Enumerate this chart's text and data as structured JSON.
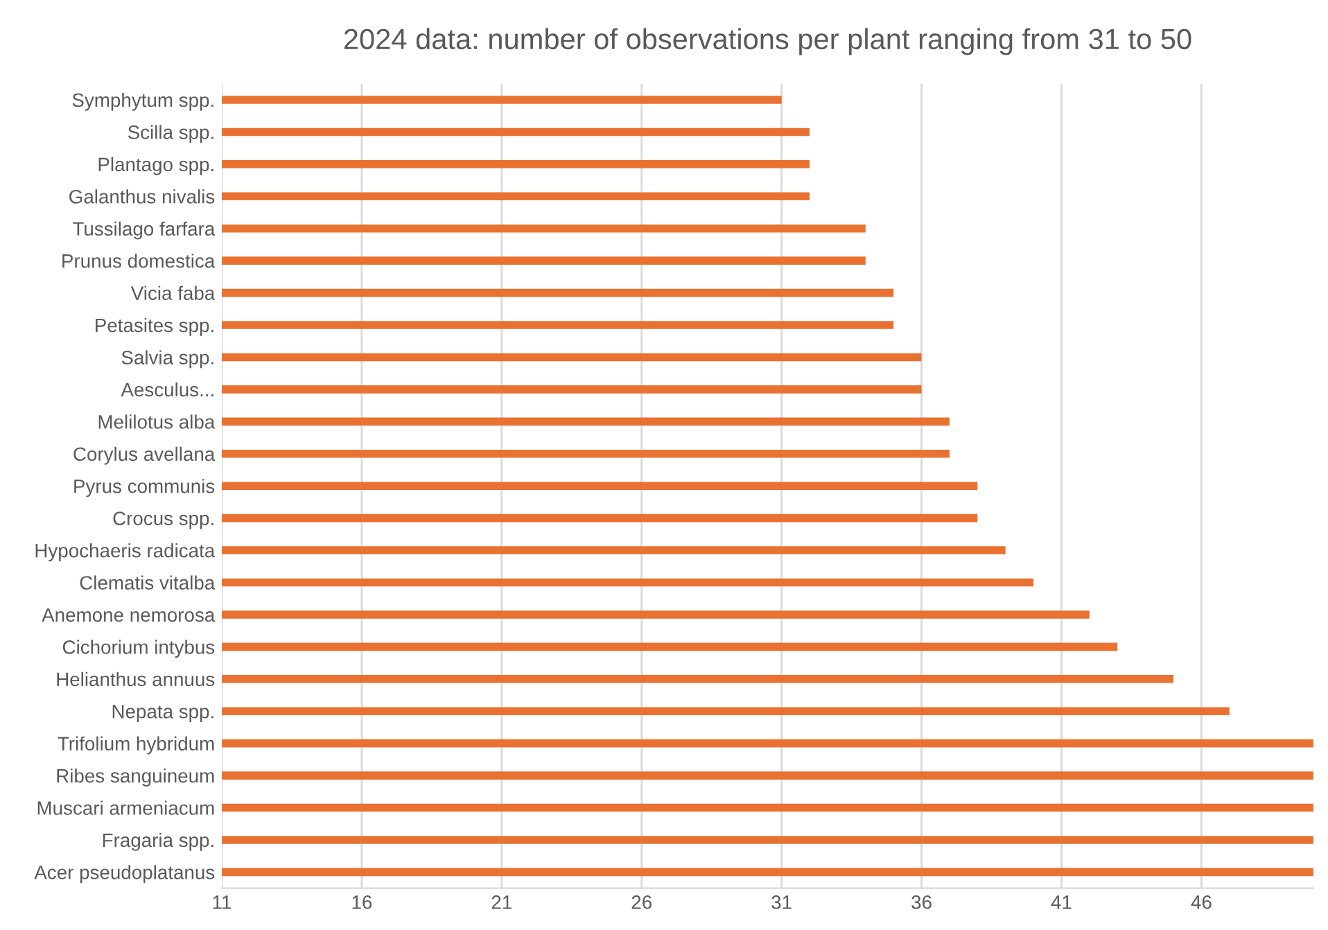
{
  "chart_data": {
    "type": "bar",
    "orientation": "horizontal",
    "title": "2024 data: number of observations per plant ranging from 31 to 50",
    "categories": [
      "Symphytum spp.",
      "Scilla spp.",
      "Plantago spp.",
      "Galanthus nivalis",
      "Tussilago farfara",
      "Prunus domestica",
      "Vicia faba",
      "Petasites spp.",
      "Salvia spp.",
      "Aesculus...",
      "Melilotus alba",
      "Corylus avellana",
      "Pyrus communis",
      "Crocus spp.",
      "Hypochaeris radicata",
      "Clematis vitalba",
      "Anemone nemorosa",
      "Cichorium intybus",
      "Helianthus annuus",
      "Nepata spp.",
      "Trifolium hybridum",
      "Ribes sanguineum",
      "Muscari armeniacum",
      "Fragaria spp.",
      "Acer pseudoplatanus"
    ],
    "values": [
      31,
      32,
      32,
      32,
      34,
      34,
      35,
      35,
      36,
      36,
      37,
      37,
      38,
      38,
      39,
      40,
      42,
      43,
      45,
      47,
      50,
      50,
      50,
      50,
      50
    ],
    "color": "#e97132",
    "xlim": [
      11,
      50
    ],
    "xticks": [
      11,
      16,
      21,
      26,
      31,
      36,
      41,
      46
    ],
    "grid": "x"
  }
}
